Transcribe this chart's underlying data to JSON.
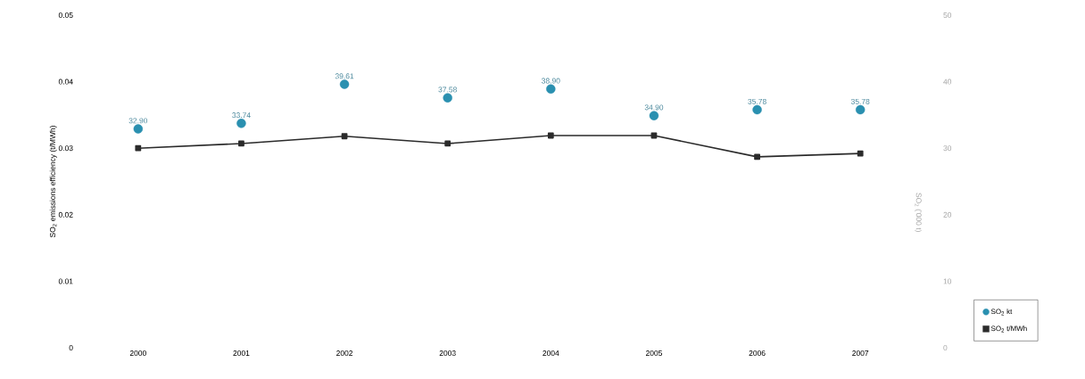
{
  "chart_data": {
    "type": "line",
    "ylabel": "SO$_{2}$ emissions efficiency (t/MWh)",
    "y2label": "SO$_{2}$ ('000 t)",
    "categories": [
      "2000",
      "2001",
      "2002",
      "2003",
      "2004",
      "2005",
      "2006",
      "2007"
    ],
    "series": [
      {
        "name": "SO$_{2}$ kt",
        "type": "scatter",
        "axis": "y2",
        "color": "#2a90b0",
        "marker": "circle",
        "values": [
          32.9,
          33.74,
          39.61,
          37.58,
          38.9,
          34.9,
          35.78,
          35.78
        ],
        "value_labels": [
          "32.90",
          "33.74",
          "39.61",
          "37.58",
          "38.90",
          "34.90",
          "35.78",
          "35.78"
        ]
      },
      {
        "name": "SO$_{2}$ t/MWh",
        "color": "#2b2b2b",
        "marker": "square",
        "line_style": "solid",
        "values": [
          0.03,
          0.0307,
          0.0318,
          0.0307,
          0.0319,
          0.0319,
          0.0287,
          0.0292
        ]
      }
    ],
    "ylim": [
      0,
      0.05
    ],
    "yticks": [
      0,
      0.01,
      0.02,
      0.03,
      0.04,
      0.05
    ],
    "y2lim": [
      0,
      50
    ],
    "y2ticks": [
      0,
      10,
      20,
      30,
      40,
      50
    ],
    "grid": false,
    "legend": "bottom right"
  }
}
